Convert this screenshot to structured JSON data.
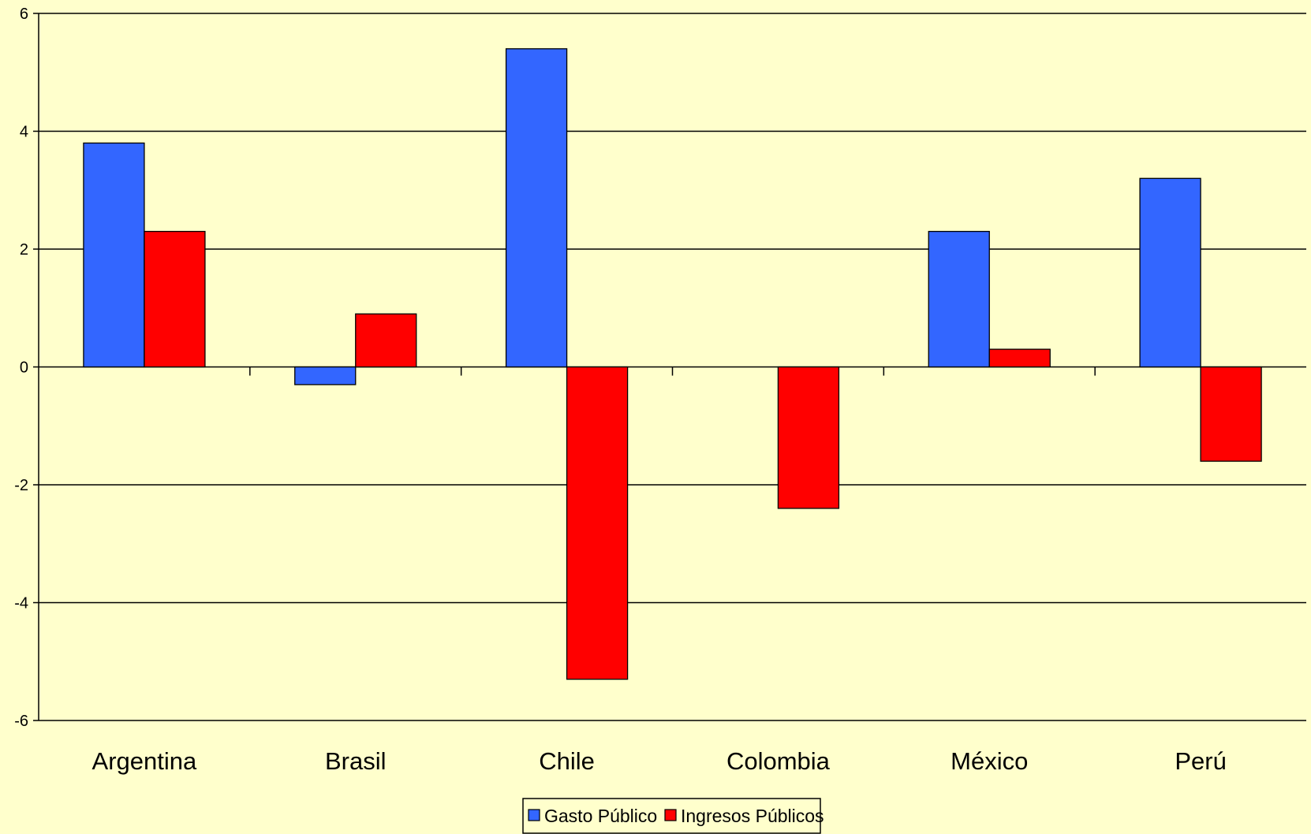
{
  "chart_data": {
    "type": "bar",
    "categories": [
      "Argentina",
      "Brasil",
      "Chile",
      "Colombia",
      "México",
      "Perú"
    ],
    "series": [
      {
        "name": "Gasto Público",
        "color": "#3366FF",
        "values": [
          3.8,
          -0.3,
          5.4,
          0.0,
          2.3,
          3.2
        ]
      },
      {
        "name": "Ingresos Públicos",
        "color": "#FF0000",
        "values": [
          2.3,
          0.9,
          -5.3,
          -2.4,
          0.3,
          -1.6
        ]
      }
    ],
    "ylim": [
      -6,
      6
    ],
    "yticks": [
      6,
      4,
      2,
      0,
      -2,
      -4,
      -6
    ],
    "grid": true,
    "background": "#FFFFCC",
    "legend_position": "bottom-center"
  }
}
